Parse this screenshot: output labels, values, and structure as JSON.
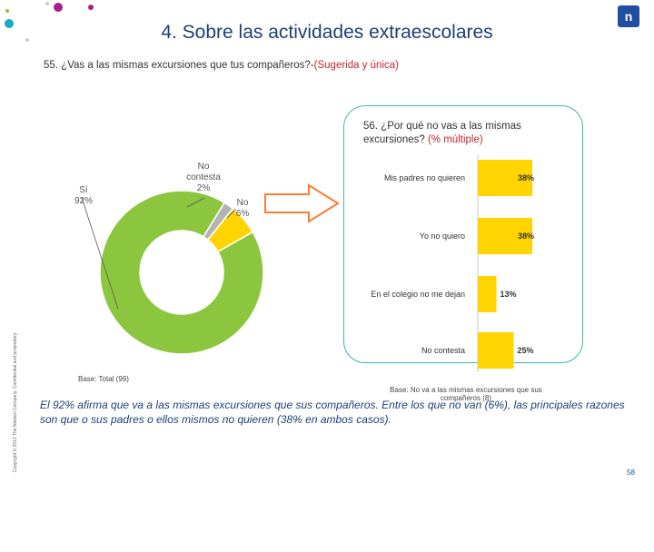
{
  "header": {
    "title": "4. Sobre las actividades extraescolares",
    "logo_text": "n"
  },
  "question55": {
    "text": "55. ¿Vas a las mismas excursiones que tus compañeros?-",
    "qualifier": "(Sugerida y única)"
  },
  "question56": {
    "text": "56. ¿Por qué no vas a las mismas excursiones?",
    "qualifier": "(% múltiple)"
  },
  "chart_data": [
    {
      "type": "pie",
      "title": "",
      "categories": [
        "Sí",
        "No contesta",
        "No"
      ],
      "values": [
        92,
        2,
        6
      ],
      "labels": [
        "Sí\n92%",
        "No\ncontesta\n2%",
        "No\n6%"
      ],
      "colors": [
        "#8cc63f",
        "#b3b3b3",
        "#ffd400"
      ],
      "base": "Base: Total (99)"
    },
    {
      "type": "bar",
      "orientation": "horizontal",
      "categories": [
        "Mis padres no quieren",
        "Yo no quiero",
        "En el colegio no me dejan",
        "No contesta"
      ],
      "values": [
        38,
        38,
        13,
        25
      ],
      "value_labels": [
        "38%",
        "38%",
        "13%",
        "25%"
      ],
      "color": "#ffd400",
      "base": "Base: No va a las mismas excursiones que sus compañeros (8)"
    }
  ],
  "summary": "El 92% afirma que va a las mismas excursiones que sus compañeros. Entre los que no van (6%), las principales razones son que o sus padres o ellos mismos no quieren (38% en ambos casos).",
  "copyright": "Copyright © 2013 The Nielsen Company. Confidential and proprietary.",
  "page_number": "58",
  "colors": {
    "accent": "#1f3e78",
    "callout": "#3fb5b0",
    "arrow": "#ff7a33"
  }
}
